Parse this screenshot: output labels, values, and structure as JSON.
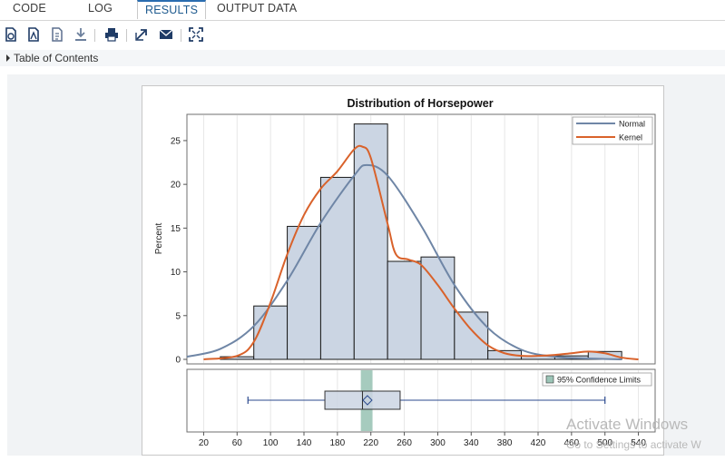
{
  "tabs": [
    {
      "label": "CODE"
    },
    {
      "label": "LOG"
    },
    {
      "label": "RESULTS"
    },
    {
      "label": "OUTPUT DATA"
    }
  ],
  "toolbar": {
    "icons": [
      "html-file-icon",
      "pdf-file-icon",
      "rtf-file-icon",
      "download-icon",
      "print-icon",
      "open-new-window-icon",
      "email-icon",
      "fullscreen-icon"
    ]
  },
  "toc": {
    "label": "Table of Contents"
  },
  "chart_data": {
    "type": "bar",
    "title": "Distribution of Horsepower",
    "ylabel": "Percent",
    "xlabel": "",
    "x_ticks": [
      20,
      60,
      100,
      140,
      180,
      220,
      260,
      300,
      340,
      380,
      420,
      460,
      500,
      540
    ],
    "y_ticks": [
      0,
      5,
      10,
      15,
      20,
      25
    ],
    "xlim": [
      0,
      560
    ],
    "ylim": [
      0,
      28
    ],
    "bins": [
      {
        "start": 40,
        "end": 80,
        "value": 0.3
      },
      {
        "start": 80,
        "end": 120,
        "value": 6.1
      },
      {
        "start": 120,
        "end": 160,
        "value": 15.2
      },
      {
        "start": 160,
        "end": 200,
        "value": 20.8
      },
      {
        "start": 200,
        "end": 240,
        "value": 26.9
      },
      {
        "start": 240,
        "end": 280,
        "value": 11.2
      },
      {
        "start": 280,
        "end": 320,
        "value": 11.7
      },
      {
        "start": 320,
        "end": 360,
        "value": 5.4
      },
      {
        "start": 360,
        "end": 400,
        "value": 1.0
      },
      {
        "start": 400,
        "end": 440,
        "value": 0.4
      },
      {
        "start": 440,
        "end": 480,
        "value": 0.4
      },
      {
        "start": 480,
        "end": 520,
        "value": 0.9
      }
    ],
    "normal_curve": {
      "name": "Normal",
      "color": "#6f86a6",
      "points": [
        [
          0,
          0.3
        ],
        [
          40,
          1.2
        ],
        [
          80,
          3.8
        ],
        [
          120,
          9.0
        ],
        [
          160,
          15.6
        ],
        [
          200,
          21.0
        ],
        [
          215,
          22.2
        ],
        [
          240,
          21.0
        ],
        [
          280,
          15.3
        ],
        [
          320,
          8.5
        ],
        [
          360,
          3.6
        ],
        [
          400,
          1.1
        ],
        [
          440,
          0.3
        ],
        [
          480,
          0.1
        ],
        [
          520,
          0.0
        ]
      ]
    },
    "kernel_curve": {
      "name": "Kernel",
      "color": "#d9622b",
      "points": [
        [
          20,
          0.0
        ],
        [
          60,
          0.4
        ],
        [
          80,
          2.0
        ],
        [
          100,
          6.5
        ],
        [
          120,
          12.0
        ],
        [
          140,
          16.5
        ],
        [
          160,
          19.5
        ],
        [
          180,
          21.5
        ],
        [
          200,
          24.0
        ],
        [
          210,
          24.3
        ],
        [
          220,
          23.0
        ],
        [
          240,
          15.5
        ],
        [
          250,
          12.0
        ],
        [
          265,
          11.4
        ],
        [
          280,
          10.8
        ],
        [
          300,
          8.5
        ],
        [
          320,
          5.8
        ],
        [
          340,
          3.4
        ],
        [
          360,
          1.6
        ],
        [
          380,
          0.7
        ],
        [
          400,
          0.4
        ],
        [
          420,
          0.4
        ],
        [
          440,
          0.5
        ],
        [
          460,
          0.7
        ],
        [
          480,
          0.9
        ],
        [
          500,
          0.7
        ],
        [
          520,
          0.2
        ],
        [
          540,
          0.0
        ]
      ]
    },
    "legend": {
      "placement": "top-right",
      "entries": [
        "Normal",
        "Kernel"
      ]
    },
    "boxplot": {
      "min": 73,
      "q1": 165,
      "median": 210,
      "mean": 215.9,
      "q3": 255,
      "max": 500,
      "ci_low": 208,
      "ci_high": 222,
      "ci_label": "95% Confidence Limits",
      "ci_color": "#9cc5b7"
    },
    "colors": {
      "bar_fill": "#cbd5e3",
      "bar_stroke": "#1a1a1a",
      "box_stroke": "#2b4a8e",
      "grid": "#e6e6e6"
    }
  },
  "watermark": {
    "line1": "Activate Windows",
    "line2": "Go to Settings to activate W"
  }
}
